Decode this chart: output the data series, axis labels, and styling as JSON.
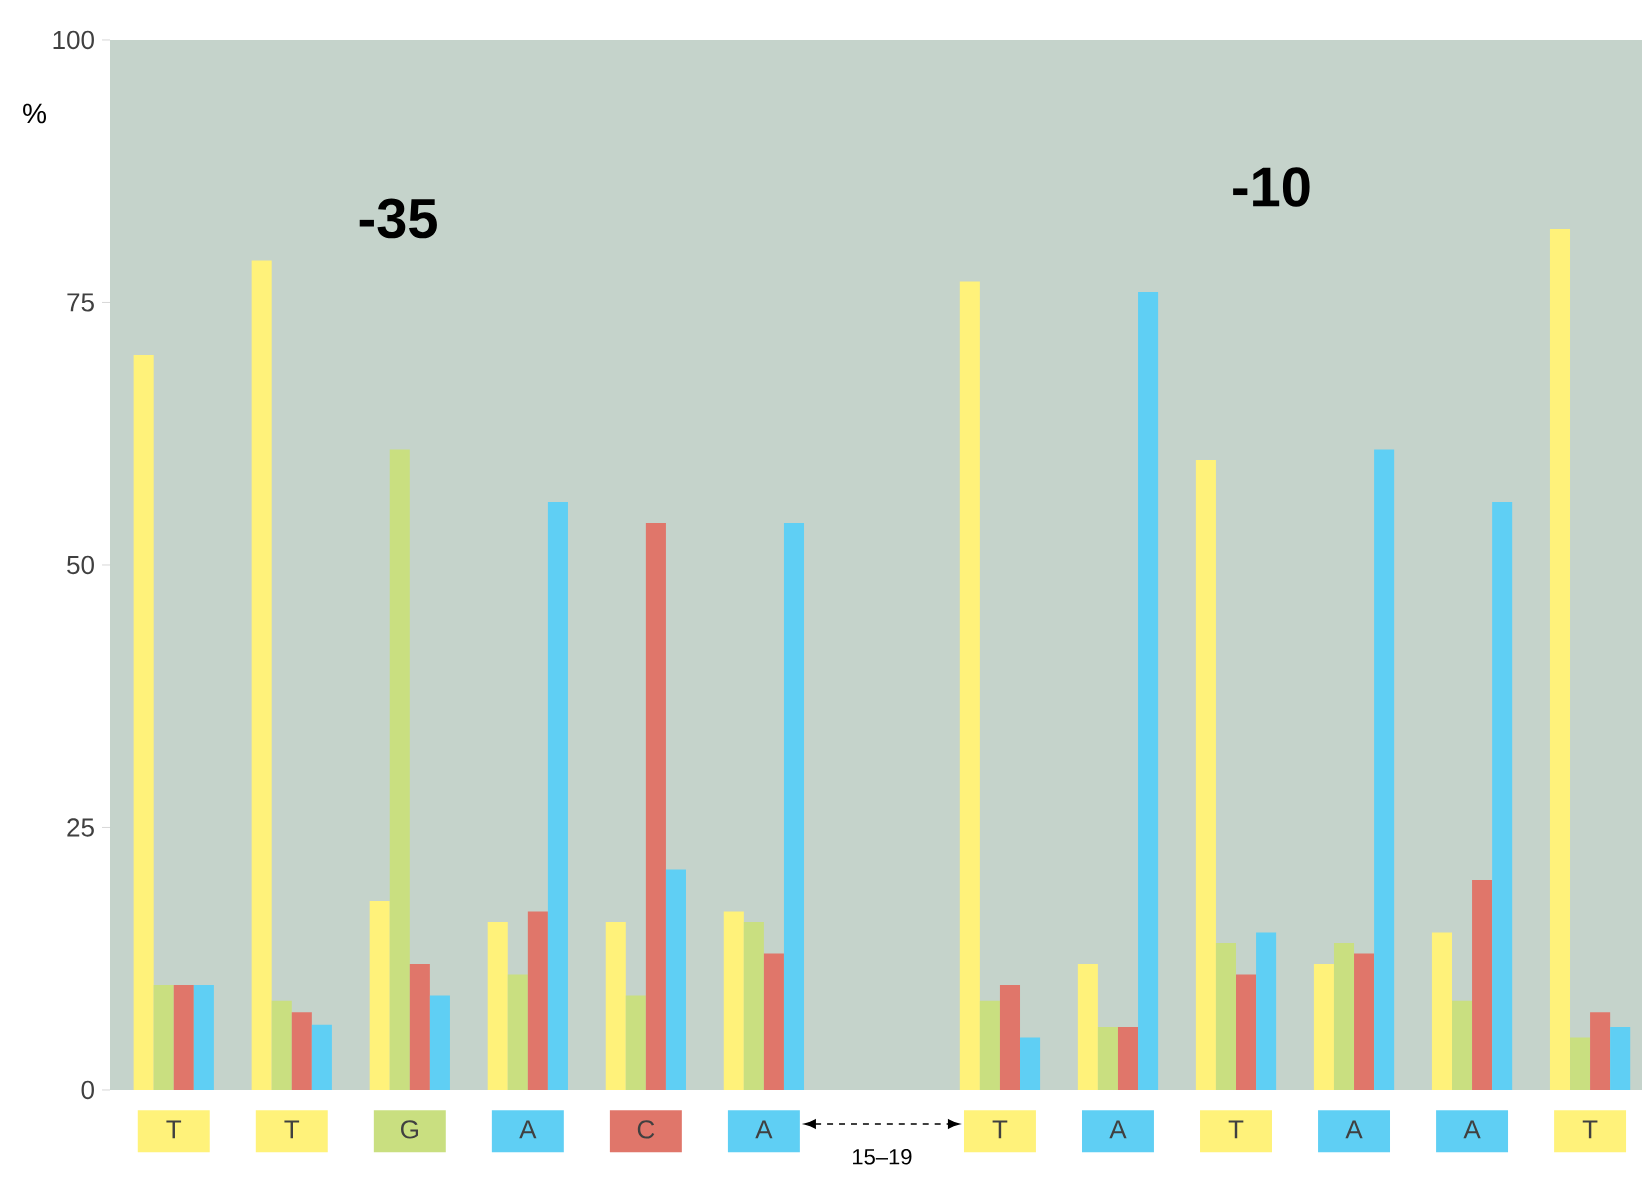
{
  "chart_data": {
    "type": "bar",
    "ylabel": "%",
    "categories": [
      "T",
      "T",
      "G",
      "A",
      "C",
      "A",
      null,
      "T",
      "A",
      "T",
      "A",
      "A",
      "T"
    ],
    "series": [
      {
        "color": "#fff27a",
        "values": [
          70,
          79,
          18,
          16,
          16,
          17,
          null,
          77,
          12,
          60,
          12,
          15,
          82
        ]
      },
      {
        "color": "#c9df80",
        "values": [
          10,
          8.5,
          61,
          11,
          9,
          16,
          null,
          8.5,
          6,
          14,
          14,
          8.5,
          5
        ]
      },
      {
        "color": "#e0766a",
        "values": [
          10,
          7.4,
          12,
          17,
          54,
          13,
          null,
          10,
          6,
          11,
          13,
          20,
          7.4
        ]
      },
      {
        "color": "#5fcff4",
        "values": [
          10,
          6.2,
          9,
          56,
          21,
          54,
          null,
          5,
          76,
          15,
          61,
          56,
          6
        ]
      }
    ],
    "ylim": [
      0,
      100
    ],
    "yticks": [
      0,
      25,
      50,
      75,
      100
    ],
    "annotations": [
      "-35",
      "-10",
      "15–19"
    ]
  }
}
